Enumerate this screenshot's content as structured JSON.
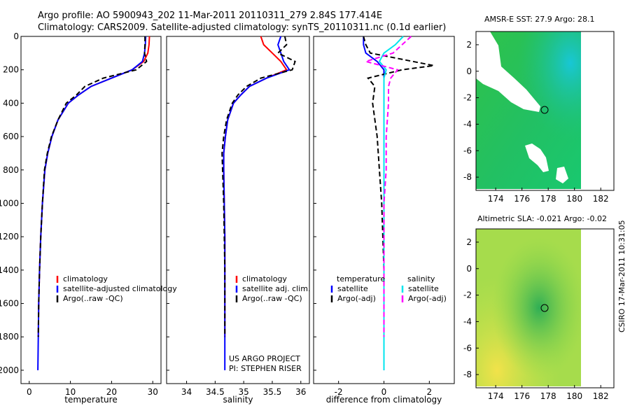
{
  "header": {
    "line1": "Argo profile: AO 5900943_202 11-Mar-2011 20110311_279 2.84S 177.414E",
    "line2": "Climatology: CARS2009. Satellite-adjusted climatology: synTS_20110311.nc (0.1d earlier)"
  },
  "credits": {
    "project": "US ARGO PROJECT",
    "pi": "PI: STEPHEN RISER"
  },
  "side_stamp": "CSIRO 17-Mar-2011 10:31:05",
  "maps": {
    "sst": {
      "title": "AMSR-E SST: 27.9 Argo: 28.1",
      "lon_ticks": [
        "174",
        "176",
        "178",
        "180",
        "182"
      ],
      "lat_ticks": [
        "2",
        "0",
        "-2",
        "-4",
        "-6",
        "-8"
      ]
    },
    "sla": {
      "title": "Altimetric SLA: -0.021 Argo: -0.02",
      "lon_ticks": [
        "174",
        "176",
        "178",
        "180",
        "182"
      ],
      "lat_ticks": [
        "2",
        "0",
        "-2",
        "-4",
        "-6",
        "-8"
      ]
    }
  },
  "colors": {
    "climatology": "#ff0000",
    "satellite": "#0000ff",
    "argo": "#000000",
    "sat_salinity": "#00e5ee",
    "argo_salinity": "#ff00ff"
  },
  "chart_data": [
    {
      "type": "line",
      "xlabel": "temperature",
      "ylabel": "",
      "xlim": [
        -2,
        32
      ],
      "ylim": [
        0,
        2080
      ],
      "xticks": [
        0,
        10,
        20,
        30
      ],
      "yticks": [
        0,
        200,
        400,
        600,
        800,
        1000,
        1200,
        1400,
        1600,
        1800,
        2000
      ],
      "legend": [
        "climatology",
        "satellite-adjusted climatology",
        "Argo(..raw -QC)"
      ],
      "series": [
        {
          "name": "climatology",
          "color": "#ff0000",
          "dash": false,
          "x": [
            29.2,
            29.1,
            28.8,
            27.8,
            25.0,
            20.0,
            15.0,
            12.0,
            9.5,
            7.0,
            5.5,
            4.5,
            3.8,
            3.2,
            2.8,
            2.5,
            2.3,
            2.2
          ],
          "y": [
            0,
            50,
            100,
            150,
            200,
            250,
            300,
            350,
            400,
            500,
            600,
            700,
            800,
            1000,
            1200,
            1400,
            1600,
            1800
          ]
        },
        {
          "name": "satellite-adjusted climatology",
          "color": "#0000ff",
          "dash": false,
          "x": [
            28.3,
            28.2,
            28.0,
            27.5,
            25.0,
            20.0,
            15.0,
            12.0,
            9.5,
            7.0,
            5.5,
            4.5,
            3.8,
            3.2,
            2.8,
            2.5,
            2.3,
            2.2,
            2.1
          ],
          "y": [
            0,
            50,
            100,
            150,
            200,
            250,
            300,
            350,
            400,
            500,
            600,
            700,
            800,
            1000,
            1200,
            1400,
            1600,
            1800,
            2000
          ]
        },
        {
          "name": "Argo(..raw -QC)",
          "color": "#000000",
          "dash": true,
          "x": [
            28.1,
            28.1,
            28.0,
            28.5,
            26.0,
            18.0,
            13.5,
            11.5,
            9.0,
            7.0,
            5.4,
            4.4,
            3.7,
            3.2,
            2.8,
            2.5,
            2.3,
            2.2
          ],
          "y": [
            0,
            50,
            100,
            150,
            200,
            250,
            300,
            350,
            400,
            500,
            600,
            700,
            800,
            1000,
            1200,
            1400,
            1600,
            1800
          ]
        }
      ]
    },
    {
      "type": "line",
      "xlabel": "salinity",
      "ylabel": "",
      "xlim": [
        33.65,
        36.15
      ],
      "ylim": [
        0,
        2080
      ],
      "xticks": [
        34,
        34.5,
        35,
        35.5,
        36
      ],
      "yticks": [
        0,
        200,
        400,
        600,
        800,
        1000,
        1200,
        1400,
        1600,
        1800,
        2000
      ],
      "legend": [
        "climatology",
        "satellite adj. clim.",
        "Argo(..raw -QC)"
      ],
      "series": [
        {
          "name": "climatology",
          "color": "#ff0000",
          "dash": false,
          "x": [
            35.3,
            35.35,
            35.5,
            35.65,
            35.75,
            35.4,
            35.1,
            34.95,
            34.82,
            34.72,
            34.68,
            34.65,
            34.65,
            34.66,
            34.67,
            34.67,
            34.67,
            34.67
          ],
          "y": [
            0,
            50,
            100,
            150,
            200,
            250,
            300,
            350,
            400,
            500,
            600,
            700,
            800,
            1000,
            1200,
            1400,
            1600,
            1800
          ]
        },
        {
          "name": "satellite adj. clim.",
          "color": "#0000ff",
          "dash": false,
          "x": [
            35.65,
            35.6,
            35.65,
            35.7,
            35.8,
            35.4,
            35.1,
            34.95,
            34.82,
            34.72,
            34.68,
            34.65,
            34.65,
            34.66,
            34.67,
            34.67,
            34.67,
            34.67,
            34.67
          ],
          "y": [
            0,
            50,
            100,
            150,
            200,
            250,
            300,
            350,
            400,
            500,
            600,
            700,
            800,
            1000,
            1200,
            1400,
            1600,
            1800,
            2000
          ]
        },
        {
          "name": "Argo(..raw -QC)",
          "color": "#000000",
          "dash": true,
          "x": [
            35.72,
            35.75,
            35.6,
            35.9,
            35.85,
            35.3,
            35.05,
            34.9,
            34.8,
            34.7,
            34.65,
            34.62,
            34.63,
            34.65,
            34.66,
            34.67,
            34.67,
            34.67
          ],
          "y": [
            0,
            50,
            100,
            150,
            200,
            250,
            300,
            350,
            400,
            500,
            600,
            700,
            800,
            1000,
            1200,
            1400,
            1600,
            1800
          ]
        }
      ]
    },
    {
      "type": "line",
      "xlabel": "difference from climatology",
      "ylabel": "",
      "xlim": [
        -3.1,
        3.1
      ],
      "ylim": [
        0,
        2080
      ],
      "xticks": [
        -2,
        0,
        2
      ],
      "yticks": [
        0,
        200,
        400,
        600,
        800,
        1000,
        1200,
        1400,
        1600,
        1800,
        2000
      ],
      "legend_temperature": [
        "temperature",
        "satellite",
        "Argo(-adj)"
      ],
      "legend_salinity": [
        "salinity",
        "satellite",
        "Argo(-adj)"
      ],
      "series": [
        {
          "name": "temperature satellite",
          "color": "#0000ff",
          "dash": false,
          "x": [
            -0.9,
            -0.9,
            -0.8,
            -0.3,
            0.0,
            0.0,
            0.0,
            0.0,
            0.0,
            0.0,
            0.0,
            0.0,
            0.0,
            0.0
          ],
          "y": [
            0,
            50,
            100,
            150,
            200,
            250,
            300,
            400,
            600,
            800,
            1000,
            1400,
            1800,
            2000
          ]
        },
        {
          "name": "temperature Argo(-adj)",
          "color": "#000000",
          "dash": true,
          "x": [
            -0.9,
            -0.8,
            -0.6,
            2.2,
            0.8,
            -0.7,
            -0.4,
            -0.5,
            -0.3,
            -0.2,
            -0.1,
            0.0,
            0.0
          ],
          "y": [
            0,
            50,
            100,
            175,
            200,
            250,
            300,
            400,
            600,
            800,
            1000,
            1400,
            1800
          ]
        },
        {
          "name": "salinity satellite",
          "color": "#00e5ee",
          "dash": false,
          "x": [
            0.85,
            0.5,
            0.0,
            -0.2,
            0.1,
            0.0,
            0.0,
            0.0,
            0.0,
            0.0,
            0.0,
            0.0,
            0.0,
            0.0
          ],
          "y": [
            0,
            50,
            100,
            150,
            200,
            250,
            300,
            400,
            600,
            800,
            1000,
            1400,
            1800,
            2000
          ]
        },
        {
          "name": "salinity Argo(-adj)",
          "color": "#ff00ff",
          "dash": true,
          "x": [
            1.2,
            0.8,
            0.4,
            -0.8,
            0.6,
            0.3,
            0.2,
            0.2,
            0.1,
            0.1,
            0.0,
            0.0,
            0.0
          ],
          "y": [
            0,
            50,
            100,
            150,
            200,
            250,
            300,
            400,
            600,
            800,
            1000,
            1400,
            1800
          ]
        }
      ]
    }
  ]
}
